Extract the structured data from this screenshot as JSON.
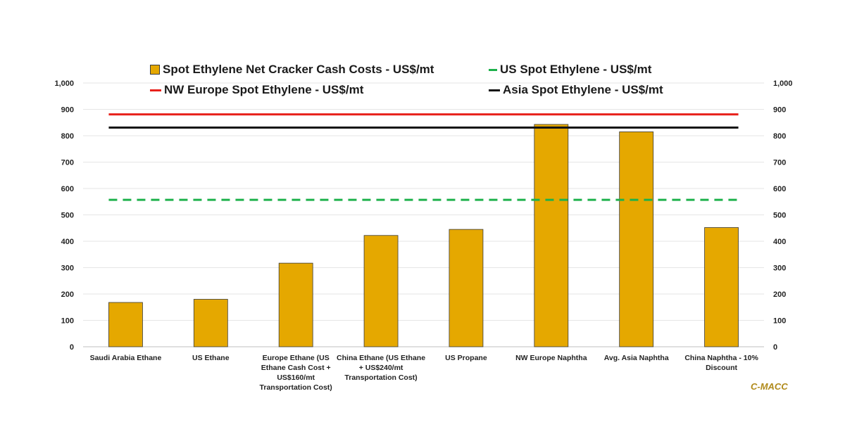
{
  "chart_data": {
    "type": "bar",
    "categories": [
      [
        "Saudi Arabia Ethane"
      ],
      [
        "US Ethane"
      ],
      [
        "Europe Ethane (US",
        "Ethane Cash Cost +",
        "US$160/mt",
        "Transportation Cost)"
      ],
      [
        "China Ethane (US Ethane",
        "+ US$240/mt",
        "Transportation Cost)"
      ],
      [
        "US Propane"
      ],
      [
        "NW Europe Naphtha"
      ],
      [
        "Avg. Asia Naphtha"
      ],
      [
        "China Naphtha - 10%",
        "Discount"
      ]
    ],
    "series": [
      {
        "name": "Spot Ethylene Net Cracker Cash Costs - US$/mt",
        "kind": "bar",
        "color": "#E5A800",
        "values": [
          168,
          180,
          317,
          422,
          445,
          843,
          815,
          452
        ]
      },
      {
        "name": "US Spot Ethylene - US$/mt",
        "kind": "dashed-line",
        "color": "#1DB14B",
        "value": 557
      },
      {
        "name": "NW Europe Spot Ethylene - US$/mt",
        "kind": "line",
        "color": "#E8211B",
        "value": 881
      },
      {
        "name": "Asia Spot Ethylene - US$/mt",
        "kind": "line",
        "color": "#111111",
        "value": 831
      }
    ],
    "ylim": [
      0,
      1000
    ],
    "yticks": [
      "0",
      "100",
      "200",
      "300",
      "400",
      "500",
      "600",
      "700",
      "800",
      "900",
      "1,000"
    ],
    "secondary_yticks": [
      "0",
      "100",
      "200",
      "300",
      "400",
      "500",
      "600",
      "700",
      "800",
      "900",
      "1,000"
    ],
    "grid": true,
    "legend_position": "top"
  },
  "watermark": "C-MACC"
}
